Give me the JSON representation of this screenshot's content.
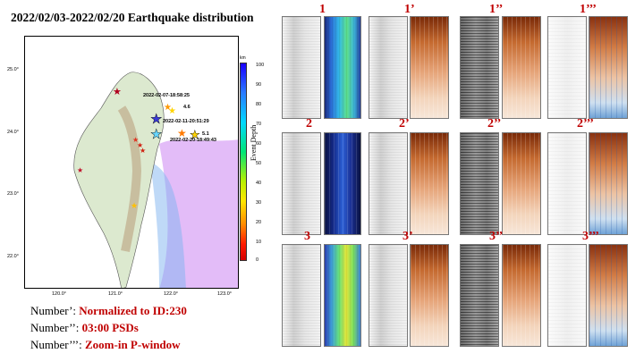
{
  "title": "2022/02/03-2022/02/20 Earthquake distribution",
  "map": {
    "y_ticks": [
      "25.0°",
      "24.0°",
      "23.0°",
      "22.0°"
    ],
    "x_ticks": [
      "120.0°",
      "121.0°",
      "122.0°",
      "123.0°"
    ],
    "events": [
      {
        "label": "2022-02-07-18:58:25",
        "magnitude": "4.6"
      },
      {
        "label": "2022-02-11-20:51:29",
        "magnitude": ""
      },
      {
        "label": "2022-02-20-18:49:43",
        "magnitude": "5.1"
      }
    ],
    "colorbar": {
      "unit": "km",
      "label": "Event Depth",
      "ticks": [
        "100",
        "90",
        "80",
        "70",
        "60",
        "50",
        "40",
        "30",
        "20",
        "10",
        "0"
      ]
    }
  },
  "legend": [
    {
      "key": "Number’: ",
      "value": "Normalized to ID:230"
    },
    {
      "key": "Number’’: ",
      "value": "03:00 PSDs"
    },
    {
      "key": "Number’’’: ",
      "value": "Zoom-in P-window"
    }
  ],
  "columns": [
    "1",
    "1’",
    "1’’",
    "1’’’"
  ],
  "rows": [
    {
      "labels": [
        "2",
        "2’",
        "2’’",
        "2’’’"
      ]
    },
    {
      "labels": [
        "3",
        "3’",
        "3’’",
        "3’’’"
      ]
    }
  ],
  "colors": {
    "label_red": "#c00000",
    "sea_purple": "#c98cf0",
    "land": "#d9e8cc"
  }
}
